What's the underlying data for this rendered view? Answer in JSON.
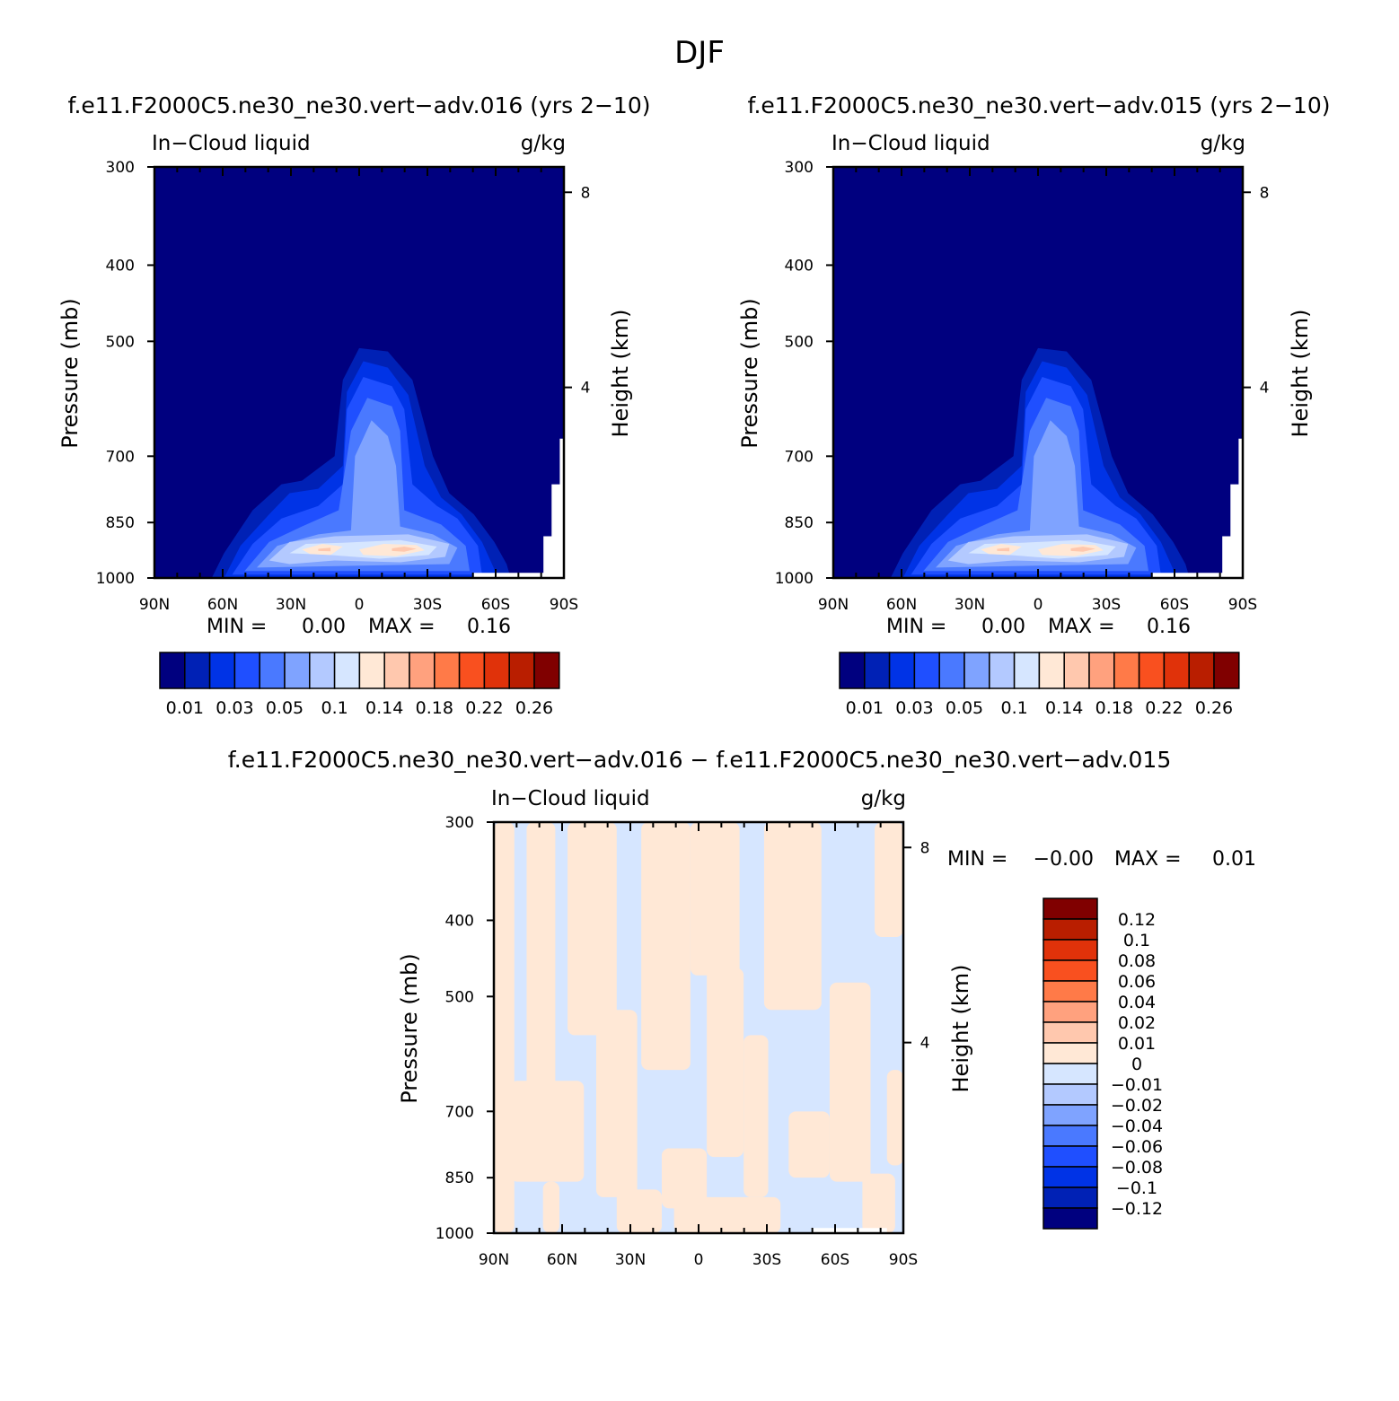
{
  "figure": {
    "title": "DJF"
  },
  "palette": {
    "abs": [
      "#00007F",
      "#0021B5",
      "#0033E6",
      "#1F4FFF",
      "#4A79FF",
      "#7FA3FF",
      "#B3C9FF",
      "#D6E6FF",
      "#FFE8D6",
      "#FFC8AE",
      "#FFA17E",
      "#FF7A48",
      "#F9501F",
      "#E0320A",
      "#B91E00",
      "#800000"
    ],
    "diff": [
      "#00007F",
      "#0021B5",
      "#0033E6",
      "#1F4FFF",
      "#4A79FF",
      "#7FA3FF",
      "#B3C9FF",
      "#D6E6FF",
      "#FFE8D6",
      "#FFC8AE",
      "#FFA17E",
      "#FF7A48",
      "#F9501F",
      "#E0320A",
      "#B91E00",
      "#800000"
    ]
  },
  "chart_data": [
    {
      "type": "heatmap",
      "title": "f.e11.F2000C5.ne30_ne30.vert−adv.016 (yrs 2−10)",
      "left_label": "In−Cloud liquid",
      "right_label": "g/kg",
      "xlabel": "",
      "ylabel": "Pressure (mb)",
      "y2label": "Height (km)",
      "x_ticks": [
        "90N",
        "60N",
        "30N",
        "0",
        "30S",
        "60S",
        "90S"
      ],
      "y_ticks": [
        300,
        400,
        500,
        700,
        850,
        1000
      ],
      "y2_ticks": [
        8,
        4
      ],
      "ylim": [
        300,
        1000
      ],
      "log_scale_y": true,
      "stats": {
        "min_label": "MIN =",
        "min": "0.00",
        "max_label": "MAX =",
        "max": "0.16"
      },
      "colorbar": {
        "orientation": "horizontal",
        "labels": [
          "0.01",
          "0.03",
          "0.05",
          "0.1",
          "0.14",
          "0.18",
          "0.22",
          "0.26"
        ]
      }
    },
    {
      "type": "heatmap",
      "title": "f.e11.F2000C5.ne30_ne30.vert−adv.015 (yrs 2−10)",
      "left_label": "In−Cloud liquid",
      "right_label": "g/kg",
      "xlabel": "",
      "ylabel": "Pressure (mb)",
      "y2label": "Height (km)",
      "x_ticks": [
        "90N",
        "60N",
        "30N",
        "0",
        "30S",
        "60S",
        "90S"
      ],
      "y_ticks": [
        300,
        400,
        500,
        700,
        850,
        1000
      ],
      "y2_ticks": [
        8,
        4
      ],
      "ylim": [
        300,
        1000
      ],
      "log_scale_y": true,
      "stats": {
        "min_label": "MIN =",
        "min": "0.00",
        "max_label": "MAX =",
        "max": "0.16"
      },
      "colorbar": {
        "orientation": "horizontal",
        "labels": [
          "0.01",
          "0.03",
          "0.05",
          "0.1",
          "0.14",
          "0.18",
          "0.22",
          "0.26"
        ]
      }
    },
    {
      "type": "heatmap",
      "title": "f.e11.F2000C5.ne30_ne30.vert−adv.016 − f.e11.F2000C5.ne30_ne30.vert−adv.015",
      "left_label": "In−Cloud liquid",
      "right_label": "g/kg",
      "xlabel": "",
      "ylabel": "Pressure (mb)",
      "y2label": "Height (km)",
      "x_ticks": [
        "90N",
        "60N",
        "30N",
        "0",
        "30S",
        "60S",
        "90S"
      ],
      "y_ticks": [
        300,
        400,
        500,
        700,
        850,
        1000
      ],
      "y2_ticks": [
        8,
        4
      ],
      "ylim": [
        300,
        1000
      ],
      "log_scale_y": true,
      "stats": {
        "min_label": "MIN =",
        "min": "−0.00",
        "max_label": "MAX =",
        "max": "0.01"
      },
      "colorbar": {
        "orientation": "vertical",
        "labels": [
          "0.12",
          "0.1",
          "0.08",
          "0.06",
          "0.04",
          "0.02",
          "0.01",
          "0",
          "−0.01",
          "−0.02",
          "−0.04",
          "−0.06",
          "−0.08",
          "−0.1",
          "−0.12"
        ]
      }
    }
  ]
}
